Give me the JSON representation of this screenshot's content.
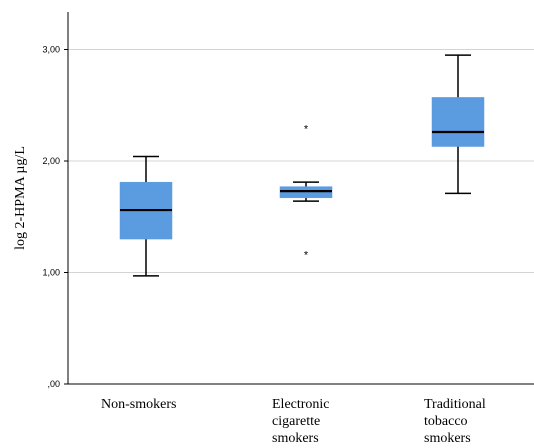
{
  "chart_data": {
    "type": "boxplot",
    "ylabel": "log 2-HPMA µg/L",
    "ylim": [
      0,
      3.3
    ],
    "yticks": [
      0,
      1,
      2,
      3
    ],
    "ytick_labels": [
      ",00",
      "1,00",
      "2,00",
      "3,00"
    ],
    "grid": "horizontal",
    "box_color": "#5b9be0",
    "categories": [
      {
        "label_lines": [
          "Non-smokers"
        ],
        "whisker_low": 0.97,
        "q1": 1.3,
        "median": 1.56,
        "q3": 1.81,
        "whisker_high": 2.04,
        "outliers": []
      },
      {
        "label_lines": [
          "Electronic",
          "cigarette",
          "smokers"
        ],
        "whisker_low": 1.64,
        "q1": 1.67,
        "median": 1.73,
        "q3": 1.77,
        "whisker_high": 1.81,
        "outliers": [
          2.3,
          1.17
        ]
      },
      {
        "label_lines": [
          "Traditional",
          "tobacco",
          "smokers"
        ],
        "whisker_low": 1.71,
        "q1": 2.13,
        "median": 2.26,
        "q3": 2.57,
        "whisker_high": 2.95,
        "outliers": []
      }
    ],
    "outlier_marker": "*"
  }
}
